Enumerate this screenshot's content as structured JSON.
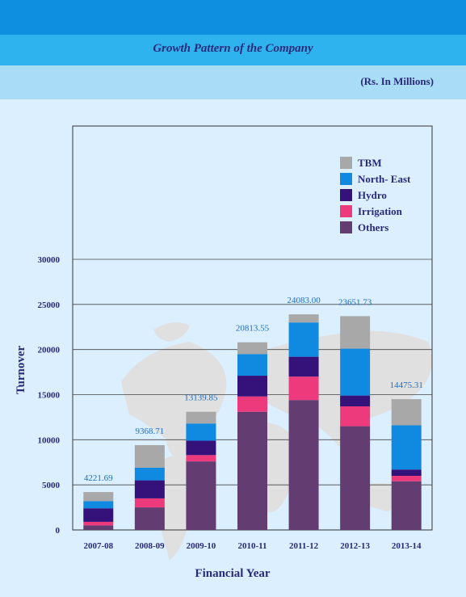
{
  "title": "Growth Pattern of the Company",
  "units": "(Rs. In Millions)",
  "colors": {
    "Others": "#633c72",
    "Irrigation": "#ec3a7c",
    "Hydro": "#34127a",
    "North- East": "#0f8ae0",
    "TBM": "#a8a8a8",
    "total_label": "#1a6ec0",
    "axis_text": "#2a2a7a"
  },
  "chart_data": {
    "type": "bar",
    "stacked": true,
    "title": "Growth Pattern of the Company",
    "xlabel": "Financial Year",
    "ylabel": "Turnover",
    "ylim": [
      0,
      30000
    ],
    "yticks": [
      0,
      5000,
      10000,
      15000,
      20000,
      25000,
      30000
    ],
    "grid": true,
    "legend": "top-right",
    "categories": [
      "2007-08",
      "2008-09",
      "2009-10",
      "2010-11",
      "2011-12",
      "2012-13",
      "2013-14"
    ],
    "series": [
      {
        "name": "Others",
        "values": [
          500,
          2500,
          7600,
          13100,
          14400,
          11500,
          5400
        ]
      },
      {
        "name": "Irrigation",
        "values": [
          400,
          1000,
          700,
          1700,
          2600,
          2200,
          600
        ]
      },
      {
        "name": "Hydro",
        "values": [
          1500,
          2000,
          1600,
          2300,
          2200,
          1200,
          700
        ]
      },
      {
        "name": "North- East",
        "values": [
          800,
          1400,
          1900,
          2400,
          3800,
          5200,
          4900
        ]
      },
      {
        "name": "TBM",
        "values": [
          1000,
          2500,
          1300,
          1300,
          900,
          3600,
          2900
        ]
      }
    ],
    "totals": [
      "4221.69",
      "9368.71",
      "13139.85",
      "20813.55",
      "24083.00",
      "23651.73",
      "14475.31"
    ],
    "legend_order": [
      "TBM",
      "North- East",
      "Hydro",
      "Irrigation",
      "Others"
    ]
  }
}
